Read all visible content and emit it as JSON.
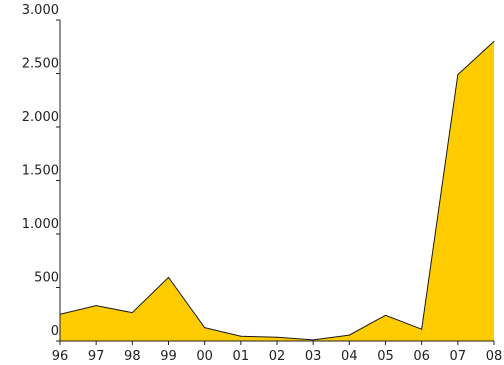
{
  "chart_data": {
    "type": "area",
    "title": "",
    "xlabel": "",
    "ylabel": "",
    "categories": [
      "96",
      "97",
      "98",
      "99",
      "00",
      "01",
      "02",
      "03",
      "04",
      "05",
      "06",
      "07",
      "08"
    ],
    "values": [
      250,
      330,
      265,
      595,
      125,
      45,
      35,
      10,
      55,
      240,
      110,
      2490,
      2800
    ],
    "ylim": [
      0,
      3000
    ],
    "yticks": [
      0,
      500,
      1000,
      1500,
      2000,
      2500,
      3000
    ],
    "ytick_labels": [
      "0",
      "500",
      "1.000",
      "1.500",
      "2.000",
      "2.500",
      "3.000"
    ],
    "grid": false,
    "fill_color": "#FFCC00",
    "line_color": "#1A1A1A"
  }
}
